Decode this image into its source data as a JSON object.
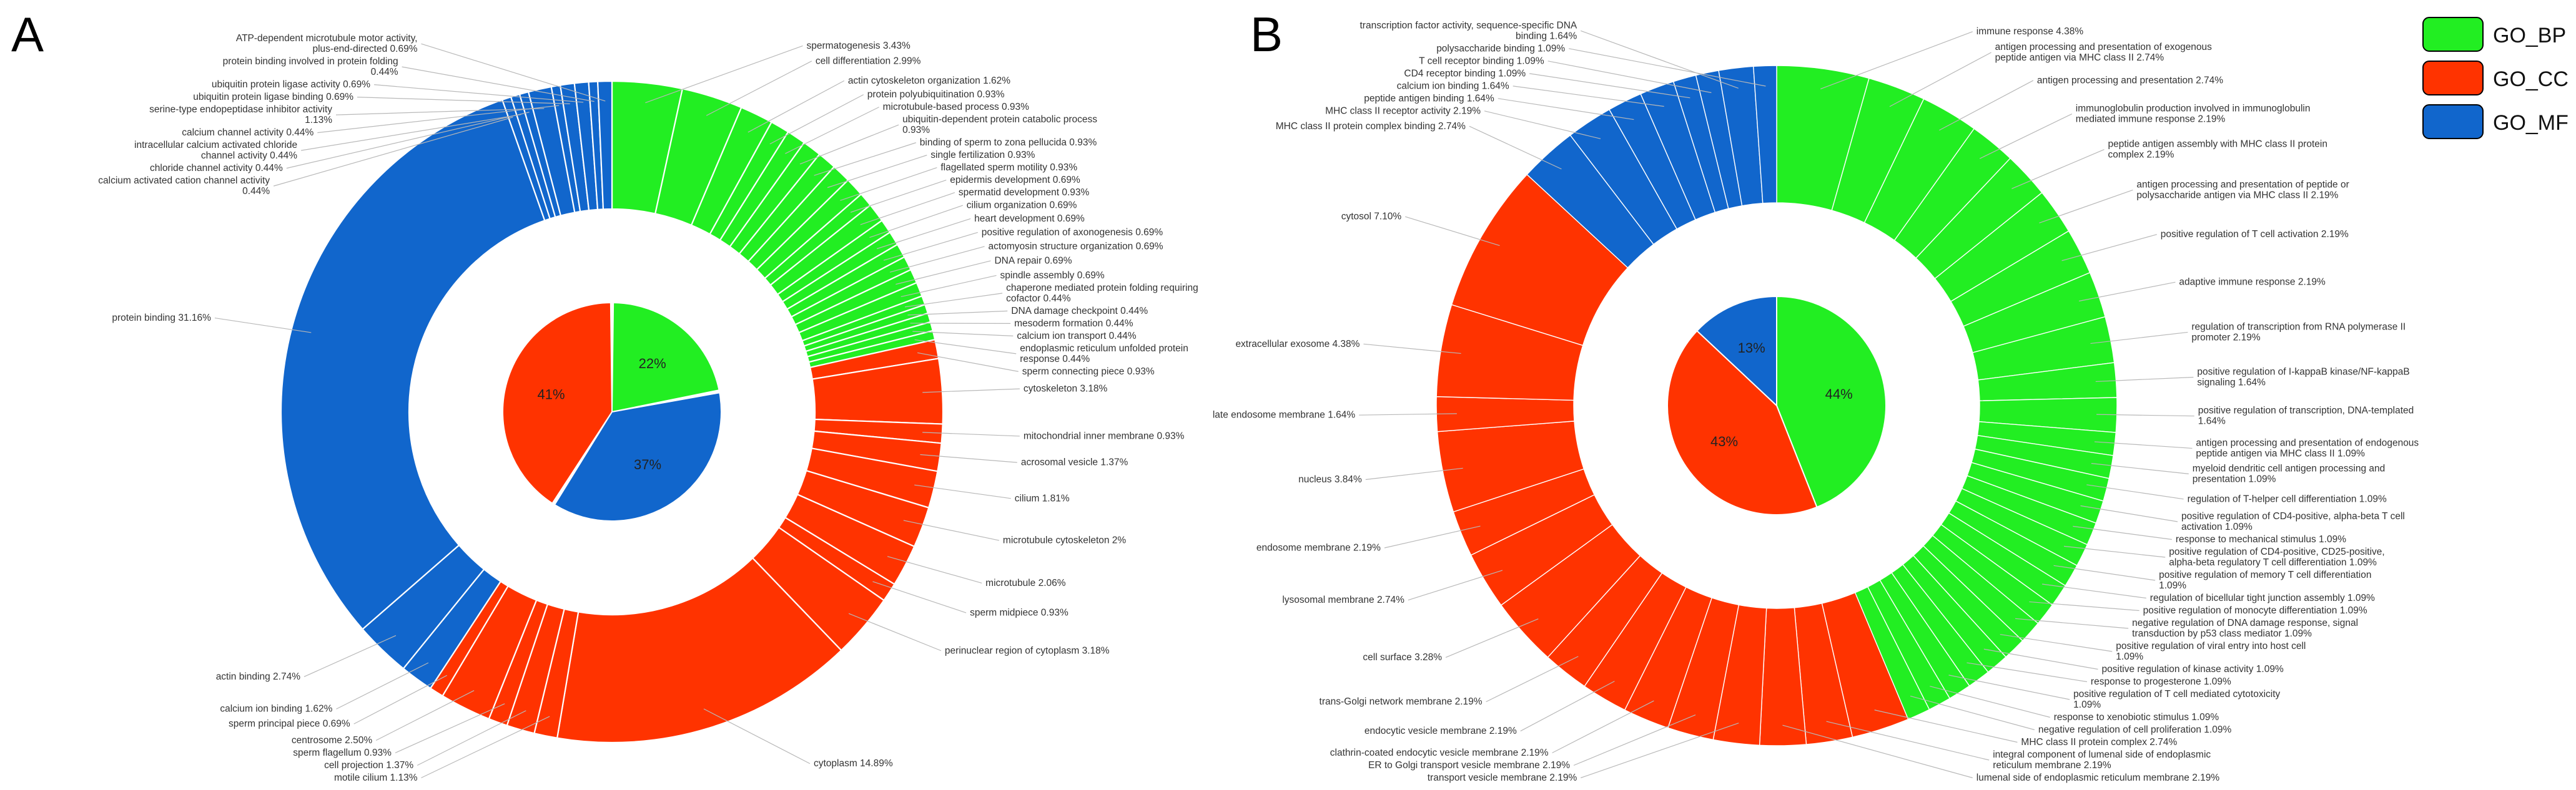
{
  "chart_data": [
    {
      "type": "pie",
      "panel_label": "A",
      "inner_ring": [
        {
          "category": "GO_BP",
          "percent": 22,
          "label": "22%"
        },
        {
          "category": "GO_MF",
          "percent": 37,
          "label": "37%"
        },
        {
          "category": "GO_CC",
          "percent": 41,
          "label": "41%"
        }
      ],
      "outer_ring": [
        {
          "category": "GO_BP",
          "label": "spermatogenesis  3.43%",
          "value": 3.43
        },
        {
          "category": "GO_BP",
          "label": "cell differentiation  2.99%",
          "value": 2.99
        },
        {
          "category": "GO_BP",
          "label": "actin cytoskeleton organization  1.62%",
          "value": 1.62
        },
        {
          "category": "GO_BP",
          "label": "protein polyubiquitination  0.93%",
          "value": 0.93
        },
        {
          "category": "GO_BP",
          "label": "microtubule-based  process 0.93%",
          "value": 0.93
        },
        {
          "category": "GO_BP",
          "label": "ubiquitin-dependent  protein catabolic process 0.93%",
          "value": 0.93
        },
        {
          "category": "GO_BP",
          "label": "binding of sperm to zona pellucida 0.93%",
          "value": 0.93
        },
        {
          "category": "GO_BP",
          "label": "single fertilization  0.93%",
          "value": 0.93
        },
        {
          "category": "GO_BP",
          "label": "flagellated  sperm motility 0.93%",
          "value": 0.93
        },
        {
          "category": "GO_BP",
          "label": "epidermis development 0.69%",
          "value": 0.69
        },
        {
          "category": "GO_BP",
          "label": "spermatid development  0.93%",
          "value": 0.93
        },
        {
          "category": "GO_BP",
          "label": "cilium organization  0.69%",
          "value": 0.69
        },
        {
          "category": "GO_BP",
          "label": "heart development  0.69%",
          "value": 0.69
        },
        {
          "category": "GO_BP",
          "label": "positive regulation  of axonogenesis  0.69%",
          "value": 0.69
        },
        {
          "category": "GO_BP",
          "label": "actomyosin structure organization  0.69%",
          "value": 0.69
        },
        {
          "category": "GO_BP",
          "label": "DNA repair  0.69%",
          "value": 0.69
        },
        {
          "category": "GO_BP",
          "label": "spindle assembly  0.69%",
          "value": 0.69
        },
        {
          "category": "GO_BP",
          "label": "chaperone mediated  protein folding requiring cofactor 0.44%",
          "value": 0.44
        },
        {
          "category": "GO_BP",
          "label": "DNA damage  checkpoint 0.44%",
          "value": 0.44
        },
        {
          "category": "GO_BP",
          "label": "mesoderm  formation  0.44%",
          "value": 0.44
        },
        {
          "category": "GO_BP",
          "label": "calcium ion transport  0.44%",
          "value": 0.44
        },
        {
          "category": "GO_BP",
          "label": "endoplasmic reticulum unfolded protein response 0.44%",
          "value": 0.44
        },
        {
          "category": "GO_CC",
          "label": "sperm connecting piece 0.93%",
          "value": 0.93
        },
        {
          "category": "GO_CC",
          "label": "cytoskeleton  3.18%",
          "value": 3.18
        },
        {
          "category": "GO_CC",
          "label": "mitochondrial inner membrane  0.93%",
          "value": 0.93
        },
        {
          "category": "GO_CC",
          "label": "acrosomal vesicle  1.37%",
          "value": 1.37
        },
        {
          "category": "GO_CC",
          "label": "cilium  1.81%",
          "value": 1.81
        },
        {
          "category": "GO_CC",
          "label": "microtubule cytoskeleton  2%",
          "value": 2
        },
        {
          "category": "GO_CC",
          "label": "microtubule 2.06%",
          "value": 2.06
        },
        {
          "category": "GO_CC",
          "label": "sperm midpiece  0.93%",
          "value": 0.93
        },
        {
          "category": "GO_CC",
          "label": "perinuclear  region of cytoplasm 3.18%",
          "value": 3.18
        },
        {
          "category": "GO_CC",
          "label": "cytoplasm 14.89%",
          "value": 14.89
        },
        {
          "category": "GO_CC",
          "label": "motile cilium 1.13%",
          "value": 1.13
        },
        {
          "category": "GO_CC",
          "label": "cell projection  1.37%",
          "value": 1.37
        },
        {
          "category": "GO_CC",
          "label": "sperm flagellum  0.93%",
          "value": 0.93
        },
        {
          "category": "GO_CC",
          "label": "centrosome  2.50%",
          "value": 2.5
        },
        {
          "category": "GO_CC",
          "label": "sperm principal piece  0.69%",
          "value": 0.69
        },
        {
          "category": "GO_MF",
          "label": "calcium ion binding  1.62%",
          "value": 1.62
        },
        {
          "category": "GO_MF",
          "label": "actin binding 2.74%",
          "value": 2.74
        },
        {
          "category": "GO_MF",
          "label": "protein binding 31.16%",
          "value": 31.16
        },
        {
          "category": "GO_MF",
          "label": "calcium activated  cation channel activity 0.44%",
          "value": 0.44
        },
        {
          "category": "GO_MF",
          "label": "intracellular  calcium activated  chloride channel activity 0.44%",
          "value": 0.44
        },
        {
          "category": "GO_MF",
          "label": "chloride channel activity  0.44%",
          "value": 0.44
        },
        {
          "category": "GO_MF",
          "label": "serine-type  endopeptidase  inhibitor activity 1.13%",
          "value": 1.13
        },
        {
          "category": "GO_MF",
          "label": "calcium channel activity  0.44%",
          "value": 0.44
        },
        {
          "category": "GO_MF",
          "label": "ubiquitin protein ligase binding 0.69%",
          "value": 0.69
        },
        {
          "category": "GO_MF",
          "label": "ubiquitin protein ligase activity 0.69%",
          "value": 0.69
        },
        {
          "category": "GO_MF",
          "label": "protein binding involved  in protein folding 0.44%",
          "value": 0.44
        },
        {
          "category": "GO_MF",
          "label": "ATP-dependent  microtubule  motor activity, plus-end-directed  0.69%",
          "value": 0.69
        }
      ]
    },
    {
      "type": "pie",
      "panel_label": "B",
      "inner_ring": [
        {
          "category": "GO_BP",
          "percent": 44,
          "label": "44%"
        },
        {
          "category": "GO_CC",
          "percent": 43,
          "label": "43%"
        },
        {
          "category": "GO_MF",
          "percent": 13,
          "label": "13%"
        }
      ],
      "outer_ring": [
        {
          "category": "GO_BP",
          "label": "immune response 4.38%",
          "value": 4.38
        },
        {
          "category": "GO_BP",
          "label": "antigen  processing and presentation of exogenous  peptide antigen via MHC class II 2.74%",
          "value": 2.74
        },
        {
          "category": "GO_BP",
          "label": "antigen  processing and presentation  2.74%",
          "value": 2.74
        },
        {
          "category": "GO_BP",
          "label": "immunoglobulin production involved  in immunoglobulin mediated immune response 2.19%",
          "value": 2.19
        },
        {
          "category": "GO_BP",
          "label": "peptide antigen  assembly with MHC class II protein complex 2.19%",
          "value": 2.19
        },
        {
          "category": "GO_BP",
          "label": "antigen  processing and presentation of peptide or polysaccharide antigen via MHC class II 2.19%",
          "value": 2.19
        },
        {
          "category": "GO_BP",
          "label": "positive regulation  of T cell activation  2.19%",
          "value": 2.19
        },
        {
          "category": "GO_BP",
          "label": "adaptive immune response 2.19%",
          "value": 2.19
        },
        {
          "category": "GO_BP",
          "label": "regulation  of transcription from RNA polymerase II promoter 2.19%",
          "value": 2.19
        },
        {
          "category": "GO_BP",
          "label": "positive regulation  of I-kappaB kinase/NF-kappaB signaling 1.64%",
          "value": 1.64
        },
        {
          "category": "GO_BP",
          "label": "positive regulation  of transcription, DNA-templated  1.64%",
          "value": 1.64
        },
        {
          "category": "GO_BP",
          "label": "antigen  processing and presentation of endogenous peptide antigen via MHC class II 1.09%",
          "value": 1.09
        },
        {
          "category": "GO_BP",
          "label": "myeloid dendritic cell antigen processing and presentation  1.09%",
          "value": 1.09
        },
        {
          "category": "GO_BP",
          "label": "regulation  of T-helper cell differentiation  1.09%",
          "value": 1.09
        },
        {
          "category": "GO_BP",
          "label": "positive regulation  of CD4-positive, alpha-beta T cell activation  1.09%",
          "value": 1.09
        },
        {
          "category": "GO_BP",
          "label": "response to mechanical stimulus 1.09%",
          "value": 1.09
        },
        {
          "category": "GO_BP",
          "label": "positive regulation  of CD4-positive, CD25-positive, alpha-beta regulatory  T cell differentiation  1.09%",
          "value": 1.09
        },
        {
          "category": "GO_BP",
          "label": "positive regulation  of memory T cell differentiation  1.09%",
          "value": 1.09
        },
        {
          "category": "GO_BP",
          "label": "regulation  of bicellular  tight junction assembly 1.09%",
          "value": 1.09
        },
        {
          "category": "GO_BP",
          "label": "positive regulation  of monocyte differentiation  1.09%",
          "value": 1.09
        },
        {
          "category": "GO_BP",
          "label": "negative regulation  of DNA damage response, signal transduction  by p53 class mediator 1.09%",
          "value": 1.09
        },
        {
          "category": "GO_BP",
          "label": "positive regulation  of viral entry into host cell 1.09%",
          "value": 1.09
        },
        {
          "category": "GO_BP",
          "label": "positive regulation  of kinase activity 1.09%",
          "value": 1.09
        },
        {
          "category": "GO_BP",
          "label": "response to progesterone  1.09%",
          "value": 1.09
        },
        {
          "category": "GO_BP",
          "label": "positive regulation  of T cell mediated  cytotoxicity 1.09%",
          "value": 1.09
        },
        {
          "category": "GO_BP",
          "label": "response to xenobiotic stimulus 1.09%",
          "value": 1.09
        },
        {
          "category": "GO_BP",
          "label": "negative regulation  of cell proliferation  1.09%",
          "value": 1.09
        },
        {
          "category": "GO_CC",
          "label": "MHC class II protein complex  2.74%",
          "value": 2.74
        },
        {
          "category": "GO_CC",
          "label": "integral component of lumenal side of endoplasmic reticulum membrane  2.19%",
          "value": 2.19
        },
        {
          "category": "GO_CC",
          "label": "lumenal side of endoplasmic reticulum membrane  2.19%",
          "value": 2.19
        },
        {
          "category": "GO_CC",
          "label": "transport vesicle membrane  2.19%",
          "value": 2.19
        },
        {
          "category": "GO_CC",
          "label": "ER to Golgi transport vesicle membrane 2.19%",
          "value": 2.19
        },
        {
          "category": "GO_CC",
          "label": "clathrin-coated  endocytic vesicle membrane  2.19%",
          "value": 2.19
        },
        {
          "category": "GO_CC",
          "label": "endocytic vesicle membrane  2.19%",
          "value": 2.19
        },
        {
          "category": "GO_CC",
          "label": "trans-Golgi network membrane  2.19%",
          "value": 2.19
        },
        {
          "category": "GO_CC",
          "label": "cell surface  3.28%",
          "value": 3.28
        },
        {
          "category": "GO_CC",
          "label": "lysosomal membrane  2.74%",
          "value": 2.74
        },
        {
          "category": "GO_CC",
          "label": "endosome membrane  2.19%",
          "value": 2.19
        },
        {
          "category": "GO_CC",
          "label": "nucleus 3.84%",
          "value": 3.84
        },
        {
          "category": "GO_CC",
          "label": "late endosome membrane  1.64%",
          "value": 1.64
        },
        {
          "category": "GO_CC",
          "label": "extracellular  exosome 4.38%",
          "value": 4.38
        },
        {
          "category": "GO_CC",
          "label": "cytosol 7.10%",
          "value": 7.1
        },
        {
          "category": "GO_MF",
          "label": "MHC class II protein complex binding 2.74%",
          "value": 2.74
        },
        {
          "category": "GO_MF",
          "label": "MHC class II receptor activity  2.19%",
          "value": 2.19
        },
        {
          "category": "GO_MF",
          "label": "peptide antigen  binding 1.64%",
          "value": 1.64
        },
        {
          "category": "GO_MF",
          "label": "calcium ion binding 1.64%",
          "value": 1.64
        },
        {
          "category": "GO_MF",
          "label": "CD4 receptor binding  1.09%",
          "value": 1.09
        },
        {
          "category": "GO_MF",
          "label": "T cell receptor binding 1.09%",
          "value": 1.09
        },
        {
          "category": "GO_MF",
          "label": "transcription factor activity, sequence-specific  DNA binding 1.64%",
          "value": 1.64
        },
        {
          "category": "GO_MF",
          "label": "polysaccharide binding 1.09%",
          "value": 1.09
        }
      ]
    }
  ],
  "legend": [
    {
      "label": "GO_BP",
      "color": "#22ee22"
    },
    {
      "label": "GO_CC",
      "color": "#ff3300"
    },
    {
      "label": "GO_MF",
      "color": "#1166cc"
    }
  ],
  "colors": {
    "GO_BP": "#22ee22",
    "GO_CC": "#ff3300",
    "GO_MF": "#1166cc"
  }
}
